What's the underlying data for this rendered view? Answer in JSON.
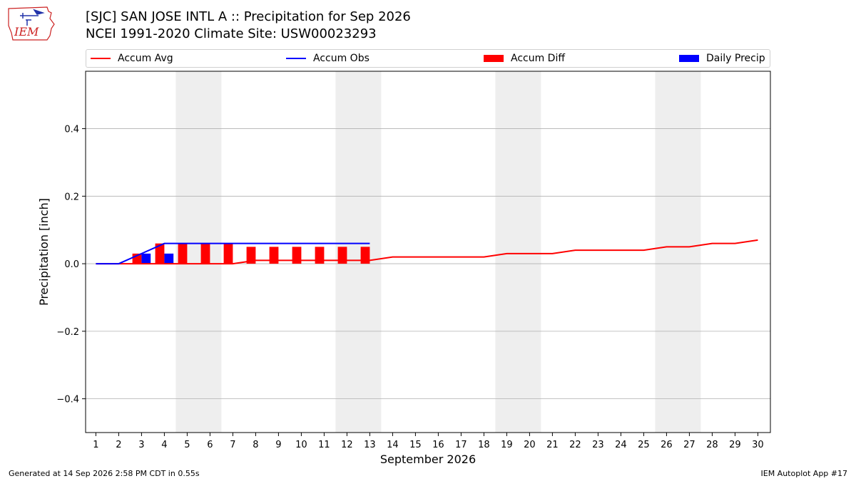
{
  "logo": {
    "text": "IEM"
  },
  "title_line1": "[SJC] SAN JOSE INTL A :: Precipitation for Sep 2026",
  "title_line2": "NCEI 1991-2020 Climate Site: USW00023293",
  "legend": [
    {
      "label": "Accum Avg",
      "kind": "line",
      "color": "#ff0000"
    },
    {
      "label": "Accum Obs",
      "kind": "line",
      "color": "#0000ff"
    },
    {
      "label": "Accum Diff",
      "kind": "rect",
      "color": "#ff0000"
    },
    {
      "label": "Daily Precip",
      "kind": "rect",
      "color": "#0000ff"
    }
  ],
  "footer_left": "Generated at 14 Sep 2026 2:58 PM CDT in 0.55s",
  "footer_right": "IEM Autoplot App #17",
  "colors": {
    "avg": "#ff0000",
    "obs": "#0000ff",
    "diff": "#ff0000",
    "daily": "#0000ff",
    "weekend": "#eeeeee",
    "grid": "#b0b0b0"
  },
  "chart_data": {
    "type": "bar",
    "xlabel": "September 2026",
    "ylabel": "Precipitation [inch]",
    "ylim": [
      -0.5,
      0.57
    ],
    "yticks": [
      -0.4,
      -0.2,
      0.0,
      0.2,
      0.4
    ],
    "ytick_labels": [
      "−0.4",
      "−0.2",
      "0.0",
      "0.2",
      "0.4"
    ],
    "xlim": [
      0.55,
      30.55
    ],
    "days": [
      1,
      2,
      3,
      4,
      5,
      6,
      7,
      8,
      9,
      10,
      11,
      12,
      13,
      14,
      15,
      16,
      17,
      18,
      19,
      20,
      21,
      22,
      23,
      24,
      25,
      26,
      27,
      28,
      29,
      30
    ],
    "grid": "horizontal",
    "weekend_bands": [
      [
        4.5,
        6.5
      ],
      [
        11.5,
        13.5
      ],
      [
        18.5,
        20.5
      ],
      [
        25.5,
        27.5
      ]
    ],
    "accum_avg": [
      0.0,
      0.0,
      0.0,
      0.0,
      0.0,
      0.0,
      0.0,
      0.01,
      0.01,
      0.01,
      0.01,
      0.01,
      0.01,
      0.02,
      0.02,
      0.02,
      0.02,
      0.02,
      0.03,
      0.03,
      0.03,
      0.04,
      0.04,
      0.04,
      0.04,
      0.05,
      0.05,
      0.06,
      0.06,
      0.07
    ],
    "accum_obs": {
      "days": [
        1,
        2,
        3,
        4,
        5,
        6,
        7,
        8,
        9,
        10,
        11,
        12,
        13
      ],
      "values": [
        0.0,
        0.0,
        0.03,
        0.06,
        0.06,
        0.06,
        0.06,
        0.06,
        0.06,
        0.06,
        0.06,
        0.06,
        0.06
      ]
    },
    "accum_diff": {
      "days": [
        1,
        2,
        3,
        4,
        5,
        6,
        7,
        8,
        9,
        10,
        11,
        12,
        13
      ],
      "values": [
        0.0,
        0.0,
        0.03,
        0.06,
        0.06,
        0.06,
        0.06,
        0.05,
        0.05,
        0.05,
        0.05,
        0.05,
        0.05
      ]
    },
    "daily_precip": {
      "days": [
        1,
        2,
        3,
        4,
        5,
        6,
        7,
        8,
        9,
        10,
        11,
        12,
        13
      ],
      "values": [
        0.0,
        0.0,
        0.03,
        0.03,
        0.0,
        0.0,
        0.0,
        0.0,
        0.0,
        0.0,
        0.0,
        0.0,
        0.0
      ]
    }
  }
}
